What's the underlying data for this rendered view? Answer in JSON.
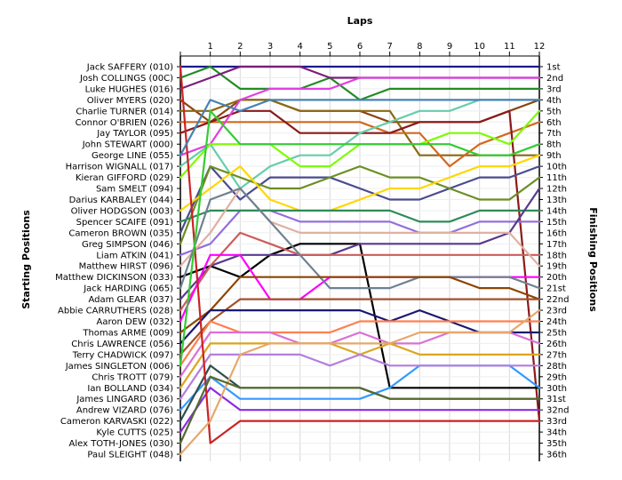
{
  "chart_data": {
    "type": "line",
    "title": "",
    "xlabel": "Laps",
    "ylabel_left": "Starting Positions",
    "ylabel_right": "Finishing Positions",
    "x": [
      0,
      1,
      2,
      3,
      4,
      5,
      6,
      7,
      8,
      9,
      10,
      11,
      12
    ],
    "x_tick_labels": [
      "1",
      "2",
      "3",
      "4",
      "5",
      "6",
      "7",
      "8",
      "9",
      "10",
      "11",
      "12"
    ],
    "ylim": [
      1,
      36
    ],
    "y_inverted": true,
    "grid": true,
    "starting_labels": [
      "Jack SAFFERY (010)",
      "Josh COLLINGS (00C)",
      "Luke HUGHES (016)",
      "Oliver MYERS (020)",
      "Charlie TURNER (014)",
      "Connor O'BRIEN (026)",
      "Jay TAYLOR (095)",
      "John STEWART (000)",
      "George LINE (055)",
      "Harrison WIGNALL (017)",
      "Kieran GIFFORD (029)",
      "Sam SMELT (094)",
      "Darius KARBALEY (044)",
      "Oliver HODGSON (003)",
      "Spencer SCAIFE (091)",
      "Cameron BROWN (035)",
      "Greg SIMPSON (046)",
      "Liam ATKIN (041)",
      "Matthew HIRST (096)",
      "Matthew DICKINSON (033)",
      "Jack HARDING (065)",
      "Adam GLEAR (037)",
      "Abbie CARRUTHERS (028)",
      "Aaron DEW (032)",
      "Thomas ARME (009)",
      "Chris LAWRENCE (056)",
      "Terry CHADWICK (097)",
      "James SINGLETON (006)",
      "Chris TROTT (079)",
      "Ian BOLLAND (034)",
      "James LINGARD (036)",
      "Andrew VIZARD (076)",
      "Cameron KARVASKI (022)",
      "Kyle CUTTS (025)",
      "Alex TOTH-JONES (030)",
      "Paul SLEIGHT (048)"
    ],
    "finishing_labels": [
      "1st",
      "2nd",
      "3rd",
      "4th",
      "5th",
      "6th",
      "7th",
      "8th",
      "9th",
      "10th",
      "11th",
      "12th",
      "13th",
      "14th",
      "15th",
      "16th",
      "17th",
      "18th",
      "19th",
      "20th",
      "21st",
      "22nd",
      "23rd",
      "24th",
      "25th",
      "26th",
      "27th",
      "28th",
      "29th",
      "30th",
      "31st",
      "32nd",
      "33rd",
      "34th",
      "35th",
      "36th"
    ],
    "series": [
      {
        "color": "#1a1a8c",
        "values": [
          1,
          1,
          1,
          1,
          1,
          1,
          1,
          1,
          1,
          1,
          1,
          1,
          1
        ]
      },
      {
        "color": "#228b22",
        "values": [
          2,
          1,
          3,
          3,
          3,
          2,
          4,
          3,
          3,
          3,
          3,
          3,
          3
        ]
      },
      {
        "color": "#7a1f7a",
        "values": [
          3,
          2,
          1,
          1,
          1,
          2,
          2,
          2,
          2,
          2,
          2,
          2,
          2
        ]
      },
      {
        "color": "#8b4513",
        "values": [
          4,
          6,
          4,
          4,
          5,
          5,
          5,
          6,
          6,
          6,
          6,
          5,
          4
        ]
      },
      {
        "color": "#8b6914",
        "values": [
          5,
          5,
          4,
          4,
          5,
          5,
          5,
          5,
          9,
          9,
          9,
          9,
          9
        ]
      },
      {
        "color": "#d2691e",
        "values": [
          6,
          6,
          6,
          6,
          6,
          6,
          6,
          7,
          7,
          10,
          8,
          7,
          6
        ]
      },
      {
        "color": "#8b1a1a",
        "values": [
          7,
          6,
          5,
          5,
          7,
          7,
          7,
          7,
          6,
          6,
          6,
          5,
          33
        ]
      },
      {
        "color": "#e040e0",
        "values": [
          9,
          8,
          4,
          3,
          3,
          3,
          2,
          2,
          2,
          2,
          2,
          2,
          2
        ]
      },
      {
        "color": "#66cdaa",
        "values": [
          10,
          8,
          12,
          10,
          9,
          9,
          7,
          6,
          5,
          5,
          4,
          4,
          4
        ]
      },
      {
        "color": "#7cfc00",
        "values": [
          11,
          8,
          8,
          8,
          10,
          10,
          8,
          8,
          8,
          7,
          7,
          8,
          5
        ]
      },
      {
        "color": "#4b4b8f",
        "values": [
          16,
          10,
          13,
          11,
          11,
          11,
          12,
          13,
          13,
          12,
          11,
          11,
          10
        ]
      },
      {
        "color": "#6b8e23",
        "values": [
          17,
          10,
          11,
          12,
          12,
          11,
          10,
          11,
          11,
          12,
          13,
          13,
          11
        ]
      },
      {
        "color": "#ffd700",
        "values": [
          14,
          12,
          10,
          13,
          14,
          14,
          13,
          12,
          12,
          11,
          10,
          10,
          9
        ]
      },
      {
        "color": "#9370db",
        "values": [
          18,
          17,
          14,
          14,
          15,
          15,
          15,
          15,
          16,
          16,
          15,
          15,
          15
        ]
      },
      {
        "color": "#2e8b57",
        "values": [
          15,
          14,
          14,
          14,
          14,
          14,
          14,
          14,
          15,
          15,
          14,
          14,
          14
        ]
      },
      {
        "color": "#000000",
        "values": [
          20,
          19,
          20,
          18,
          17,
          17,
          17,
          30,
          30,
          30,
          30,
          30,
          30
        ]
      },
      {
        "color": "#5a3a8c",
        "values": [
          22,
          19,
          18,
          18,
          18,
          18,
          17,
          17,
          17,
          17,
          17,
          16,
          12
        ]
      },
      {
        "color": "#cd5c5c",
        "values": [
          23,
          19,
          16,
          17,
          18,
          18,
          18,
          18,
          18,
          18,
          18,
          18,
          18
        ]
      },
      {
        "color": "#e0b0a0",
        "values": [
          19,
          16,
          12,
          15,
          16,
          16,
          16,
          16,
          16,
          16,
          16,
          16,
          19
        ]
      },
      {
        "color": "#ff00ff",
        "values": [
          24,
          18,
          18,
          22,
          22,
          20,
          20,
          20,
          20,
          20,
          20,
          20,
          20
        ]
      },
      {
        "color": "#708090",
        "values": [
          21,
          13,
          12,
          15,
          18,
          21,
          21,
          21,
          20,
          20,
          20,
          20,
          21
        ]
      },
      {
        "color": "#8b4500",
        "values": [
          25,
          23,
          20,
          20,
          20,
          20,
          20,
          20,
          20,
          20,
          21,
          21,
          22
        ]
      },
      {
        "color": "#a0522d",
        "values": [
          27,
          24,
          22,
          22,
          22,
          22,
          22,
          22,
          22,
          22,
          22,
          22,
          22
        ]
      },
      {
        "color": "#191970",
        "values": [
          26,
          23,
          23,
          23,
          23,
          23,
          23,
          24,
          23,
          24,
          25,
          25,
          25
        ]
      },
      {
        "color": "#ff7f50",
        "values": [
          28,
          24,
          25,
          25,
          25,
          25,
          24,
          24,
          24,
          24,
          24,
          24,
          24
        ]
      },
      {
        "color": "#da70d6",
        "values": [
          29,
          25,
          25,
          25,
          26,
          26,
          25,
          26,
          26,
          25,
          25,
          25,
          26
        ]
      },
      {
        "color": "#daa520",
        "values": [
          30,
          26,
          26,
          26,
          26,
          26,
          27,
          26,
          27,
          27,
          27,
          27,
          27
        ]
      },
      {
        "color": "#3399ff",
        "values": [
          32,
          29,
          31,
          31,
          31,
          31,
          31,
          30,
          28,
          28,
          28,
          28,
          30
        ]
      },
      {
        "color": "#b57edc",
        "values": [
          31,
          27,
          27,
          27,
          27,
          28,
          27,
          28,
          28,
          28,
          28,
          28,
          28
        ]
      },
      {
        "color": "#2f4f4f",
        "values": [
          33,
          28,
          30,
          30,
          30,
          30,
          30,
          31,
          31,
          31,
          31,
          31,
          31
        ]
      },
      {
        "color": "#8a2be2",
        "values": [
          34,
          30,
          32,
          32,
          32,
          32,
          32,
          32,
          32,
          32,
          32,
          32,
          32
        ]
      },
      {
        "color": "#cc2222",
        "values": [
          1,
          35,
          33,
          33,
          33,
          33,
          33,
          33,
          33,
          33,
          33,
          33,
          33
        ]
      },
      {
        "color": "#4682b4",
        "values": [
          9,
          4,
          5,
          4,
          4,
          4,
          4,
          4,
          4,
          4,
          4,
          4,
          4
        ]
      },
      {
        "color": "#32cd32",
        "values": [
          28,
          5,
          8,
          8,
          8,
          8,
          8,
          8,
          8,
          8,
          9,
          9,
          8
        ]
      },
      {
        "color": "#e6a86c",
        "values": [
          36,
          33,
          27,
          26,
          26,
          26,
          26,
          26,
          25,
          25,
          25,
          25,
          23
        ]
      },
      {
        "color": "#556b2f",
        "values": [
          35,
          29,
          30,
          30,
          30,
          30,
          30,
          31,
          31,
          31,
          31,
          31,
          31
        ]
      }
    ]
  }
}
